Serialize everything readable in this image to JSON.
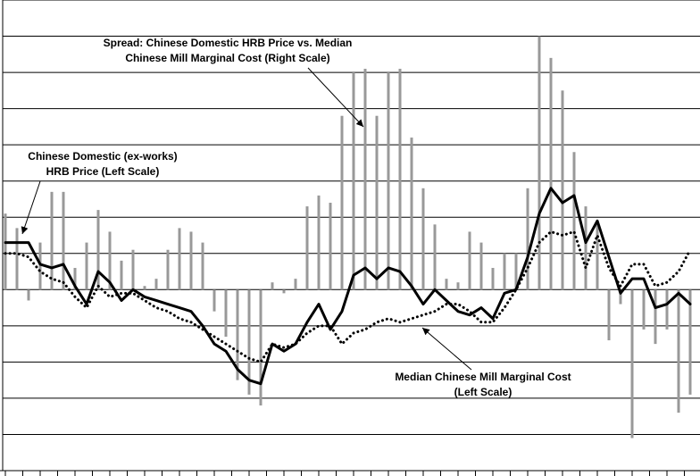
{
  "chart_data": {
    "type": "combo",
    "annotations": [
      [
        "Spread: Chinese Domestic HRB Price vs. Median",
        "Chinese Mill Marginal Cost (Right Scale)"
      ],
      [
        "Chinese Domestic (ex-works)",
        "HRB Price (Left Scale)"
      ],
      [
        "Median Chinese Mill Marginal Cost",
        "(Left Scale)"
      ]
    ],
    "ylim": [
      0,
      130
    ],
    "yticks": [
      0,
      10,
      20,
      30,
      40,
      50,
      60,
      70,
      80,
      90,
      100,
      110,
      120,
      130
    ],
    "y2lim": [
      -50,
      80
    ],
    "grid": true,
    "series": [
      {
        "type": "bar",
        "axis": "y2",
        "color": "#999999",
        "values": [
          21,
          17,
          -3,
          13,
          27,
          27,
          6,
          13,
          22,
          16,
          8,
          11,
          1,
          3,
          11,
          17,
          16,
          13,
          -6,
          -13,
          -25,
          -29,
          -32,
          2,
          -1,
          3,
          23,
          26,
          24,
          48,
          60,
          61,
          48,
          60,
          61,
          42,
          28,
          18,
          3,
          2,
          16,
          13,
          6,
          10,
          10,
          28,
          70,
          64,
          55,
          38,
          23,
          18,
          -14,
          -4,
          -41,
          -11,
          -15,
          -11,
          -34,
          -29
        ]
      },
      {
        "type": "line",
        "color": "#000000",
        "dash": "solid",
        "values": [
          63,
          63,
          63,
          57,
          56,
          57,
          51,
          46,
          55,
          52,
          47,
          50,
          48,
          47,
          46,
          45,
          44,
          40,
          35,
          33,
          28,
          25,
          24,
          35,
          33,
          35,
          41,
          46,
          39,
          44,
          54,
          56,
          53,
          56,
          55,
          51,
          46,
          50,
          47,
          44,
          43,
          45,
          42,
          49,
          50,
          59,
          71,
          78,
          74,
          76,
          63,
          69,
          59,
          49,
          53,
          53,
          45,
          46,
          49,
          46
        ]
      },
      {
        "type": "line",
        "color": "#000000",
        "dash": "dotted",
        "values": [
          60,
          60,
          59,
          55,
          53,
          52,
          48,
          45,
          51,
          48,
          49,
          49,
          47,
          45,
          44,
          42,
          41,
          39,
          37,
          35,
          33,
          31,
          30,
          35,
          34,
          35,
          38,
          40,
          40,
          35,
          38,
          39,
          41,
          42,
          41,
          42,
          43,
          44,
          46,
          46,
          44,
          41,
          41,
          45,
          50,
          56,
          63,
          66,
          65,
          66,
          56,
          65,
          56,
          51,
          57,
          57,
          51,
          52,
          55,
          61
        ]
      }
    ]
  }
}
